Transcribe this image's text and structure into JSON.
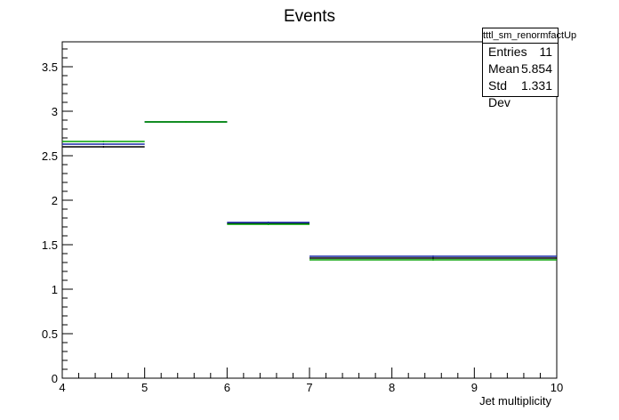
{
  "chart_data": {
    "type": "histogram",
    "title": "Events",
    "xlabel": "Jet multiplicity",
    "ylabel": "",
    "xlim": [
      4,
      10
    ],
    "ylim": [
      0,
      3.78
    ],
    "x_ticks": [
      "4",
      "5",
      "6",
      "7",
      "8",
      "9",
      "10"
    ],
    "y_ticks": [
      "0",
      "0.5",
      "1",
      "1.5",
      "2",
      "2.5",
      "3",
      "3.5"
    ],
    "bins": [
      [
        4,
        5
      ],
      [
        5,
        6
      ],
      [
        6,
        7
      ],
      [
        7,
        10
      ]
    ],
    "series": [
      {
        "color": "#000000",
        "values": [
          2.6,
          2.88,
          1.74,
          1.35
        ]
      },
      {
        "color": "#1a2aa8",
        "values": [
          2.63,
          2.88,
          1.75,
          1.37
        ]
      },
      {
        "color": "#00a000",
        "values": [
          2.66,
          2.88,
          1.73,
          1.33
        ]
      }
    ],
    "grid": false,
    "legend": "none"
  },
  "stats": {
    "title": "tttl_sm_renormfactUp",
    "rows": [
      {
        "label": "Entries",
        "value": "11"
      },
      {
        "label": "Mean",
        "value": "5.854"
      },
      {
        "label": "Std Dev",
        "value": "1.331"
      }
    ]
  }
}
